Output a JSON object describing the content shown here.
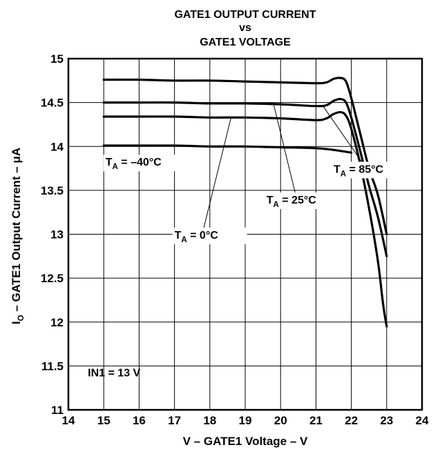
{
  "chart_data": {
    "type": "line",
    "title_lines": [
      "GATE1 OUTPUT CURRENT",
      "vs",
      "GATE1 VOLTAGE"
    ],
    "xlabel": "V – GATE1 Voltage – V",
    "ylabel_main": "I",
    "ylabel_sub": "O",
    "ylabel_rest": " – GATE1 Output Current – μA",
    "xlim": [
      14,
      24
    ],
    "ylim": [
      11,
      15
    ],
    "x_ticks": [
      "14",
      "15",
      "16",
      "17",
      "18",
      "19",
      "20",
      "21",
      "22",
      "23",
      "24"
    ],
    "y_ticks": [
      "11",
      "11.5",
      "12",
      "12.5",
      "13",
      "13.5",
      "14",
      "14.5",
      "15"
    ],
    "grid": true,
    "series": [
      {
        "name": "T = 85°C",
        "points": [
          [
            15,
            14.76
          ],
          [
            16,
            14.76
          ],
          [
            17,
            14.75
          ],
          [
            18,
            14.75
          ],
          [
            19,
            14.74
          ],
          [
            20,
            14.73
          ],
          [
            21,
            14.72
          ],
          [
            21.3,
            14.73
          ],
          [
            21.5,
            14.77
          ],
          [
            21.7,
            14.78
          ],
          [
            21.85,
            14.74
          ],
          [
            22.0,
            14.55
          ],
          [
            22.25,
            14.15
          ],
          [
            22.5,
            13.75
          ],
          [
            22.75,
            13.45
          ],
          [
            23,
            13.0
          ]
        ]
      },
      {
        "name": "T = 25°C",
        "points": [
          [
            15,
            14.5
          ],
          [
            16,
            14.5
          ],
          [
            17,
            14.5
          ],
          [
            18,
            14.49
          ],
          [
            19,
            14.49
          ],
          [
            20,
            14.48
          ],
          [
            21,
            14.46
          ],
          [
            21.3,
            14.47
          ],
          [
            21.5,
            14.52
          ],
          [
            21.7,
            14.54
          ],
          [
            21.85,
            14.5
          ],
          [
            22.0,
            14.33
          ],
          [
            22.25,
            13.95
          ],
          [
            22.5,
            13.55
          ],
          [
            22.75,
            13.2
          ],
          [
            23,
            12.75
          ]
        ]
      },
      {
        "name": "T = 0°C",
        "points": [
          [
            15,
            14.34
          ],
          [
            16,
            14.34
          ],
          [
            17,
            14.34
          ],
          [
            18,
            14.33
          ],
          [
            19,
            14.33
          ],
          [
            20,
            14.32
          ],
          [
            21,
            14.3
          ],
          [
            21.3,
            14.32
          ],
          [
            21.5,
            14.37
          ],
          [
            21.7,
            14.39
          ],
          [
            21.85,
            14.35
          ],
          [
            22.0,
            14.2
          ],
          [
            22.25,
            13.8
          ],
          [
            22.5,
            13.3
          ],
          [
            22.75,
            12.7
          ],
          [
            22.9,
            12.2
          ],
          [
            23,
            11.95
          ]
        ]
      },
      {
        "name": "T = –40°C",
        "points": [
          [
            15,
            14.01
          ],
          [
            16,
            14.01
          ],
          [
            17,
            14.01
          ],
          [
            18,
            14.0
          ],
          [
            19,
            14.0
          ],
          [
            20,
            13.99
          ],
          [
            21,
            13.98
          ],
          [
            21.5,
            13.96
          ],
          [
            22,
            13.93
          ]
        ]
      }
    ],
    "annotations": [
      {
        "id": "ann-85",
        "main": "T",
        "sub": "A",
        "rest": " = 85°C",
        "label_at": [
          21.5,
          13.7
        ],
        "pointer_to": [
          21.2,
          14.46
        ]
      },
      {
        "id": "ann-25",
        "main": "T",
        "sub": "A",
        "rest": " = 25°C",
        "label_at": [
          19.6,
          13.35
        ],
        "pointer_to": [
          19.8,
          14.485
        ]
      },
      {
        "id": "ann-0",
        "main": "T",
        "sub": "A",
        "rest": " = 0°C",
        "label_at": [
          17.0,
          12.95
        ],
        "pointer_to": [
          18.6,
          14.33
        ]
      },
      {
        "id": "ann-m40",
        "main": "T",
        "sub": "A",
        "rest": " = –40°C",
        "label_at": [
          15.05,
          13.78
        ],
        "pointer_to": null
      }
    ],
    "condition_text": "IN1 = 13 V",
    "condition_at": [
      14.55,
      11.38
    ]
  }
}
